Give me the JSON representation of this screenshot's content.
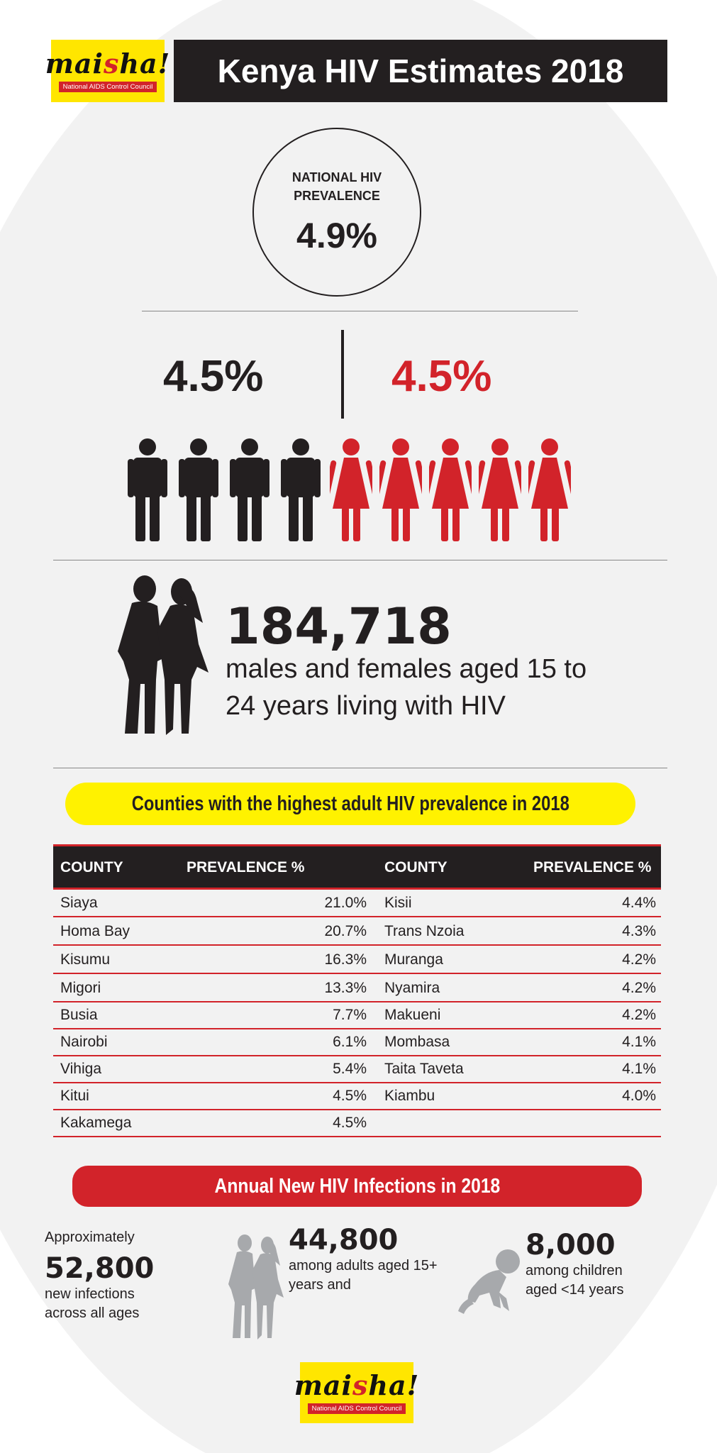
{
  "header": {
    "logo_word": "mai",
    "logo_word_end": "ha!",
    "logo_tagline": "National AIDS Control Council",
    "title": "Kenya HIV Estimates 2018"
  },
  "national": {
    "label": "NATIONAL HIV PREVALENCE",
    "value": "4.9%"
  },
  "sex": {
    "male_pct": "4.5%",
    "female_pct": "4.5%",
    "male_color": "#231f20",
    "female_color": "#d2232a"
  },
  "youth": {
    "count": "184,718",
    "description": "males and females aged 15 to 24 years living with HIV"
  },
  "counties": {
    "heading": "Counties with the highest adult HIV prevalence in 2018",
    "col_county": "COUNTY",
    "col_prevalence": "PREVALENCE %",
    "left": [
      {
        "county": "Siaya",
        "prevalence": "21.0%"
      },
      {
        "county": "Homa Bay",
        "prevalence": "20.7%"
      },
      {
        "county": "Kisumu",
        "prevalence": "16.3%"
      },
      {
        "county": "Migori",
        "prevalence": "13.3%"
      },
      {
        "county": "Busia",
        "prevalence": "7.7%"
      },
      {
        "county": "Nairobi",
        "prevalence": "6.1%"
      },
      {
        "county": "Vihiga",
        "prevalence": "5.4%"
      },
      {
        "county": "Kitui",
        "prevalence": "4.5%"
      },
      {
        "county": "Kakamega",
        "prevalence": "4.5%"
      }
    ],
    "right": [
      {
        "county": "Kisii",
        "prevalence": "4.4%"
      },
      {
        "county": "Trans Nzoia",
        "prevalence": "4.3%"
      },
      {
        "county": "Muranga",
        "prevalence": "4.2%"
      },
      {
        "county": "Nyamira",
        "prevalence": "4.2%"
      },
      {
        "county": "Makueni",
        "prevalence": "4.2%"
      },
      {
        "county": "Mombasa",
        "prevalence": "4.1%"
      },
      {
        "county": "Taita Taveta",
        "prevalence": "4.1%"
      },
      {
        "county": "Kiambu",
        "prevalence": "4.0%"
      }
    ]
  },
  "infections": {
    "heading": "Annual New HIV Infections in 2018",
    "total_prefix": "Approximately",
    "total": "52,800",
    "total_desc": "new infections across all ages",
    "adults": "44,800",
    "adults_desc": "among adults aged 15+ years and",
    "children": "8,000",
    "children_desc": "among children aged <14 years"
  }
}
